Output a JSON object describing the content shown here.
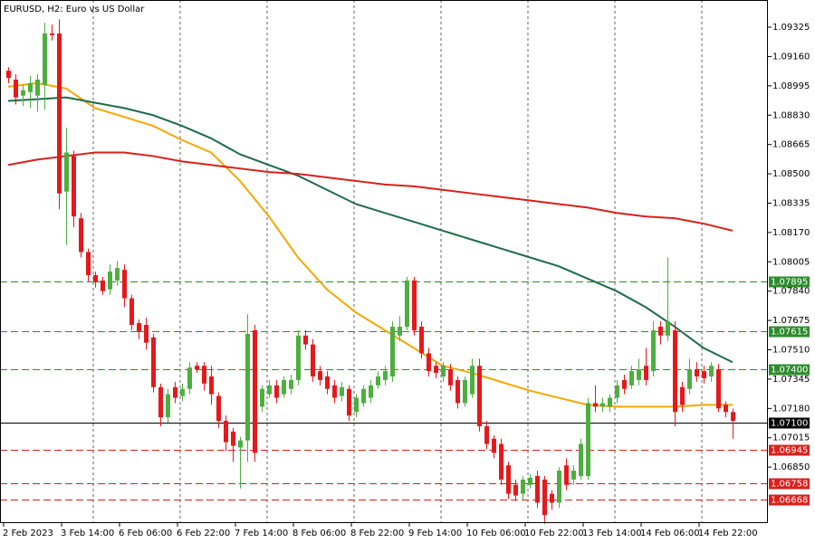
{
  "chart_data": {
    "type": "candlestick",
    "title": "EURUSD, H2:  Euro vs US Dollar",
    "categories": [
      "2 Feb 2023",
      null,
      null,
      null,
      null,
      null,
      null,
      null,
      "3 Feb 14:00",
      null,
      null,
      null,
      null,
      null,
      null,
      null,
      "6 Feb 06:00",
      null,
      null,
      null,
      null,
      null,
      null,
      null,
      "6 Feb 22:00",
      null,
      null,
      null,
      null,
      null,
      null,
      null,
      "7 Feb 14:00",
      null,
      null,
      null,
      null,
      null,
      null,
      null,
      "8 Feb 06:00",
      null,
      null,
      null,
      null,
      null,
      null,
      null,
      "8 Feb 22:00",
      null,
      null,
      null,
      null,
      null,
      null,
      null,
      "9 Feb 14:00",
      null,
      null,
      null,
      null,
      null,
      null,
      null,
      "10 Feb 06:00",
      null,
      null,
      null,
      null,
      null,
      null,
      null,
      "10 Feb 22:00",
      null,
      null,
      null,
      null,
      null,
      null,
      null,
      "13 Feb 14:00",
      null,
      null,
      null,
      null,
      null,
      null,
      null,
      "14 Feb 06:00",
      null,
      null,
      null,
      null,
      null,
      null,
      null,
      "14 Feb 22:00",
      null,
      null,
      null,
      null
    ],
    "open": [
      1.0908,
      1.0903,
      1.0894,
      1.0896,
      1.0894,
      1.09,
      1.0929,
      1.0929,
      1.084,
      1.086,
      1.0825,
      1.0806,
      1.0793,
      1.079,
      1.0785,
      1.079,
      1.0796,
      1.078,
      1.0766,
      1.0765,
      1.0758,
      1.073,
      1.0713,
      1.073,
      1.0725,
      1.0729,
      1.0742,
      1.0742,
      1.0736,
      1.0725,
      1.0711,
      1.0705,
      1.0696,
      1.07,
      1.0762,
      1.0719,
      1.0726,
      1.0731,
      1.0726,
      1.0729,
      1.0734,
      1.0759,
      1.0754,
      1.0739,
      1.0736,
      1.0731,
      1.0725,
      1.0729,
      1.0716,
      1.0721,
      1.0724,
      1.0731,
      1.0734,
      1.0736,
      1.0759,
      1.0764,
      1.079,
      1.0764,
      1.0749,
      1.0742,
      1.0736,
      1.074,
      1.0734,
      1.0721,
      1.0726,
      1.0742,
      1.0708,
      1.0701,
      1.0698,
      1.0686,
      1.0675,
      1.067,
      1.0675,
      1.068,
      1.0678,
      1.067,
      1.0665,
      1.0686,
      1.0678,
      1.068,
      1.068,
      1.0721,
      1.0719,
      1.0719,
      1.0724,
      1.0734,
      1.0731,
      1.0734,
      1.0742,
      1.0739,
      1.0764,
      1.0759,
      1.0762,
      1.073,
      1.0729,
      1.074,
      1.0739,
      1.0736,
      1.074,
      1.072,
      1.0716
    ],
    "high": [
      1.091,
      1.0906,
      1.09,
      1.0905,
      1.0906,
      1.0935,
      1.0934,
      1.0937,
      1.0876,
      1.0863,
      1.0828,
      1.0808,
      1.0795,
      1.0792,
      1.0799,
      1.0801,
      1.0799,
      1.0782,
      1.0768,
      1.0769,
      1.076,
      1.0732,
      1.0729,
      1.0733,
      1.0732,
      1.0744,
      1.0744,
      1.0744,
      1.0742,
      1.0727,
      1.0714,
      1.0707,
      1.0702,
      1.0771,
      1.0765,
      1.0731,
      1.0734,
      1.0734,
      1.0736,
      1.0737,
      1.0762,
      1.0762,
      1.0757,
      1.0742,
      1.0739,
      1.0734,
      1.0733,
      1.0731,
      1.0726,
      1.0731,
      1.0734,
      1.0739,
      1.0742,
      1.0767,
      1.077,
      1.0792,
      1.0792,
      1.0767,
      1.0752,
      1.0744,
      1.0744,
      1.0743,
      1.0736,
      1.0736,
      1.0746,
      1.0746,
      1.0711,
      1.0703,
      1.0701,
      1.0688,
      1.0678,
      1.068,
      1.0681,
      1.0683,
      1.068,
      1.0672,
      1.0685,
      1.069,
      1.0686,
      1.0701,
      1.0724,
      1.0731,
      1.0724,
      1.0726,
      1.0734,
      1.0737,
      1.0742,
      1.0746,
      1.0752,
      1.0767,
      1.0767,
      1.0803,
      1.0767,
      1.0733,
      1.0746,
      1.0744,
      1.0742,
      1.0744,
      1.0743,
      1.0722,
      1.0718
    ],
    "low": [
      1.0901,
      1.0889,
      1.0888,
      1.0887,
      1.0885,
      1.0886,
      1.0925,
      1.083,
      1.081,
      1.082,
      1.0803,
      1.0789,
      1.0786,
      1.0782,
      1.0782,
      1.0787,
      1.0775,
      1.0762,
      1.0757,
      1.0751,
      1.0727,
      1.0708,
      1.071,
      1.0721,
      1.0722,
      1.0726,
      1.0738,
      1.0728,
      1.072,
      1.0707,
      1.0694,
      1.0688,
      1.0673,
      1.0688,
      1.0688,
      1.0716,
      1.0724,
      1.0721,
      1.0724,
      1.0726,
      1.0731,
      1.0751,
      1.0733,
      1.0731,
      1.0726,
      1.0721,
      1.0722,
      1.0711,
      1.0713,
      1.0719,
      1.0721,
      1.0729,
      1.0731,
      1.0733,
      1.0756,
      1.0762,
      1.0759,
      1.0746,
      1.0736,
      1.0735,
      1.0733,
      1.0728,
      1.0718,
      1.0719,
      1.0724,
      1.0705,
      1.0695,
      1.069,
      1.0675,
      1.0667,
      1.0666,
      1.0667,
      1.0673,
      1.0662,
      1.0653,
      1.0661,
      1.0662,
      1.0672,
      1.0675,
      1.0678,
      1.0678,
      1.0716,
      1.0716,
      1.0716,
      1.0721,
      1.0726,
      1.0729,
      1.0731,
      1.0731,
      1.0736,
      1.0754,
      1.0756,
      1.0708,
      1.0716,
      1.0726,
      1.0733,
      1.0732,
      1.0733,
      1.0716,
      1.0713,
      1.0701
    ],
    "close": [
      1.0904,
      1.0893,
      1.0897,
      1.0901,
      1.0903,
      1.0929,
      1.0928,
      1.0839,
      1.0862,
      1.0826,
      1.0806,
      1.0793,
      1.0789,
      1.0784,
      1.0795,
      1.0797,
      1.078,
      1.0765,
      1.0761,
      1.0755,
      1.073,
      1.0713,
      1.0726,
      1.0724,
      1.0729,
      1.0741,
      1.074,
      1.0732,
      1.0726,
      1.0711,
      1.0699,
      1.0697,
      1.07,
      1.076,
      1.0693,
      1.0729,
      1.0731,
      1.0724,
      1.0734,
      1.0734,
      1.0759,
      1.0754,
      1.0736,
      1.0734,
      1.0729,
      1.0724,
      1.073,
      1.0714,
      1.0724,
      1.0729,
      1.0731,
      1.0736,
      1.0739,
      1.0764,
      1.0764,
      1.079,
      1.0762,
      1.0749,
      1.0739,
      1.0738,
      1.0742,
      1.0731,
      1.0721,
      1.0734,
      1.0742,
      1.0708,
      1.0698,
      1.0693,
      1.0678,
      1.067,
      1.0669,
      1.0678,
      1.0679,
      1.0665,
      1.0658,
      1.0665,
      1.0683,
      1.0675,
      1.0683,
      1.0698,
      1.0721,
      1.0719,
      1.0721,
      1.0724,
      1.0731,
      1.0729,
      1.0739,
      1.074,
      1.0734,
      1.0762,
      1.0759,
      1.0767,
      1.0716,
      1.072,
      1.074,
      1.0736,
      1.0735,
      1.0742,
      1.0718,
      1.0716,
      1.0711
    ],
    "up_color": "#4caf3f",
    "down_color": "#e5191b",
    "lines": [
      {
        "color": "#f5a800",
        "x": [
          0,
          4,
          8,
          12,
          16,
          20,
          24,
          28,
          32,
          36,
          40,
          44,
          48,
          52,
          56,
          60,
          64,
          68,
          72,
          76,
          80,
          84,
          88,
          92,
          96,
          100
        ],
        "values": [
          1.0899,
          1.0901,
          1.0898,
          1.0887,
          1.0882,
          1.0877,
          1.0869,
          1.0862,
          1.0846,
          1.0826,
          1.0803,
          1.0785,
          1.0772,
          1.0762,
          1.0752,
          1.0742,
          1.0738,
          1.0733,
          1.0728,
          1.0724,
          1.072,
          1.0719,
          1.0719,
          1.0719,
          1.072,
          1.072
        ]
      },
      {
        "color": "#1e6b4a",
        "x": [
          0,
          4,
          8,
          12,
          16,
          20,
          24,
          28,
          32,
          36,
          40,
          44,
          48,
          52,
          56,
          60,
          64,
          68,
          72,
          76,
          80,
          84,
          88,
          92,
          96,
          100
        ],
        "values": [
          1.0891,
          1.0892,
          1.0893,
          1.089,
          1.0887,
          1.0883,
          1.0877,
          1.087,
          1.0861,
          1.0855,
          1.0849,
          1.0841,
          1.0833,
          1.0828,
          1.0823,
          1.0818,
          1.0813,
          1.0808,
          1.0803,
          1.0798,
          1.0791,
          1.0784,
          1.0775,
          1.0764,
          1.0752,
          1.0744
        ]
      },
      {
        "color": "#d9201b",
        "x": [
          0,
          4,
          8,
          12,
          16,
          20,
          24,
          28,
          32,
          36,
          40,
          44,
          48,
          52,
          56,
          60,
          64,
          68,
          72,
          76,
          80,
          84,
          88,
          92,
          96,
          100
        ],
        "values": [
          1.0855,
          1.0858,
          1.086,
          1.0862,
          1.0862,
          1.086,
          1.0857,
          1.0855,
          1.0853,
          1.0851,
          1.085,
          1.0848,
          1.0846,
          1.0844,
          1.0843,
          1.0841,
          1.0839,
          1.0837,
          1.0835,
          1.0833,
          1.0831,
          1.0828,
          1.0826,
          1.0825,
          1.0822,
          1.0818
        ]
      }
    ],
    "levels": [
      {
        "value": 1.07895,
        "label": "1.07895",
        "color": "#2e8b2e",
        "style": "dashed"
      },
      {
        "value": 1.07615,
        "label": "1.07615",
        "color": "#2e8b2e",
        "style": "dashed"
      },
      {
        "value": 1.074,
        "label": "1.07400",
        "color": "#2e8b2e",
        "style": "dashed"
      },
      {
        "value": 1.071,
        "label": "1.07100",
        "color": "#000000",
        "style": "solid"
      },
      {
        "value": 1.06945,
        "label": "1.06945",
        "color": "#d9201b",
        "style": "dashed"
      },
      {
        "value": 1.06758,
        "label": "1.06758",
        "color": "#d9201b",
        "style": "dashed"
      },
      {
        "value": 1.06668,
        "label": "1.06668",
        "color": "#d9201b",
        "style": "dashed"
      }
    ],
    "ylim": [
      1.06535,
      1.09478
    ],
    "yticks": [
      1.09325,
      {
        "value": 1.0916,
        "label": "1.09160"
      },
      1.08995,
      {
        "value": 1.0883,
        "label": "1.08830"
      },
      1.08665,
      {
        "value": 1.085,
        "label": "1.08500"
      },
      1.08335,
      {
        "value": 1.0817,
        "label": "1.08170"
      },
      1.08005,
      {
        "value": 1.0784,
        "label": "1.07840"
      },
      1.07675,
      {
        "value": 1.0751,
        "label": "1.07510"
      },
      1.07345,
      {
        "value": 1.0718,
        "label": "1.07180"
      },
      1.07015,
      {
        "value": 1.0685,
        "label": "1.06850"
      }
    ],
    "grid": true
  }
}
